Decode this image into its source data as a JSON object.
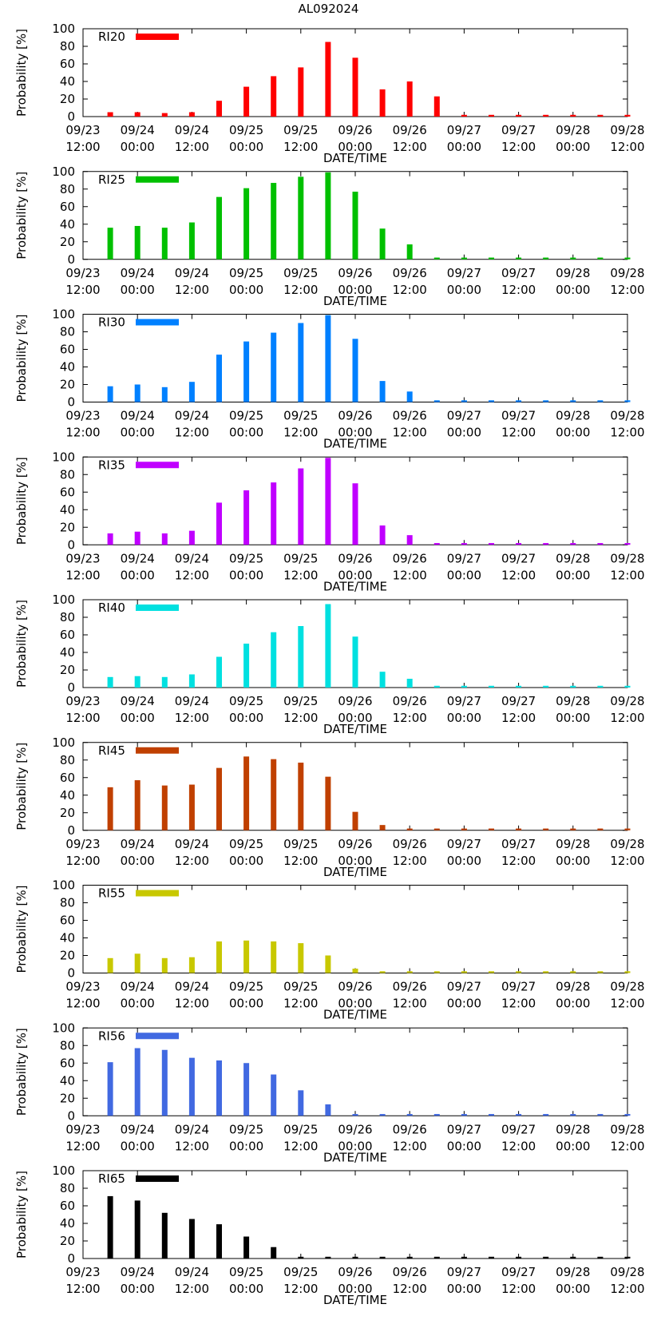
{
  "figure_title": "AL092024",
  "chart_data": [
    {
      "type": "bar",
      "series_name": "RI20",
      "color": "#ff0000",
      "ylabel": "Probability [%]",
      "xlabel": "DATE/TIME",
      "ylim": [
        0,
        100
      ],
      "yticks": [
        0,
        20,
        40,
        60,
        80,
        100
      ],
      "xtick_labels": [
        [
          "09/23",
          "12:00"
        ],
        [
          "09/24",
          "00:00"
        ],
        [
          "09/24",
          "12:00"
        ],
        [
          "09/25",
          "00:00"
        ],
        [
          "09/25",
          "12:00"
        ],
        [
          "09/26",
          "00:00"
        ],
        [
          "09/26",
          "12:00"
        ],
        [
          "09/27",
          "00:00"
        ],
        [
          "09/27",
          "12:00"
        ],
        [
          "09/28",
          "00:00"
        ],
        [
          "09/28",
          "12:00"
        ]
      ],
      "x_hours": [
        6,
        12,
        18,
        24,
        30,
        36,
        42,
        48,
        54,
        60,
        66,
        72,
        78,
        84,
        90,
        96,
        102,
        108,
        114,
        120
      ],
      "values": [
        5,
        5,
        4,
        5,
        18,
        34,
        46,
        56,
        85,
        67,
        31,
        40,
        23,
        2,
        2,
        2,
        2,
        2,
        2,
        2
      ]
    },
    {
      "type": "bar",
      "series_name": "RI25",
      "color": "#00c000",
      "ylabel": "Probability [%]",
      "xlabel": "DATE/TIME",
      "ylim": [
        0,
        100
      ],
      "yticks": [
        0,
        20,
        40,
        60,
        80,
        100
      ],
      "xtick_labels": [
        [
          "09/23",
          "12:00"
        ],
        [
          "09/24",
          "00:00"
        ],
        [
          "09/24",
          "12:00"
        ],
        [
          "09/25",
          "00:00"
        ],
        [
          "09/25",
          "12:00"
        ],
        [
          "09/26",
          "00:00"
        ],
        [
          "09/26",
          "12:00"
        ],
        [
          "09/27",
          "00:00"
        ],
        [
          "09/27",
          "12:00"
        ],
        [
          "09/28",
          "00:00"
        ],
        [
          "09/28",
          "12:00"
        ]
      ],
      "x_hours": [
        6,
        12,
        18,
        24,
        30,
        36,
        42,
        48,
        54,
        60,
        66,
        72,
        78,
        84,
        90,
        96,
        102,
        108,
        114,
        120
      ],
      "values": [
        36,
        38,
        36,
        42,
        71,
        81,
        87,
        94,
        99,
        77,
        35,
        17,
        2,
        2,
        2,
        2,
        2,
        2,
        2,
        2
      ]
    },
    {
      "type": "bar",
      "series_name": "RI30",
      "color": "#0080ff",
      "ylabel": "Probability [%]",
      "xlabel": "DATE/TIME",
      "ylim": [
        0,
        100
      ],
      "yticks": [
        0,
        20,
        40,
        60,
        80,
        100
      ],
      "xtick_labels": [
        [
          "09/23",
          "12:00"
        ],
        [
          "09/24",
          "00:00"
        ],
        [
          "09/24",
          "12:00"
        ],
        [
          "09/25",
          "00:00"
        ],
        [
          "09/25",
          "12:00"
        ],
        [
          "09/26",
          "00:00"
        ],
        [
          "09/26",
          "12:00"
        ],
        [
          "09/27",
          "00:00"
        ],
        [
          "09/27",
          "12:00"
        ],
        [
          "09/28",
          "00:00"
        ],
        [
          "09/28",
          "12:00"
        ]
      ],
      "x_hours": [
        6,
        12,
        18,
        24,
        30,
        36,
        42,
        48,
        54,
        60,
        66,
        72,
        78,
        84,
        90,
        96,
        102,
        108,
        114,
        120
      ],
      "values": [
        18,
        20,
        17,
        23,
        54,
        69,
        79,
        90,
        99,
        72,
        24,
        12,
        2,
        2,
        2,
        2,
        2,
        2,
        2,
        2
      ]
    },
    {
      "type": "bar",
      "series_name": "RI35",
      "color": "#c000ff",
      "ylabel": "Probability [%]",
      "xlabel": "DATE/TIME",
      "ylim": [
        0,
        100
      ],
      "yticks": [
        0,
        20,
        40,
        60,
        80,
        100
      ],
      "xtick_labels": [
        [
          "09/23",
          "12:00"
        ],
        [
          "09/24",
          "00:00"
        ],
        [
          "09/24",
          "12:00"
        ],
        [
          "09/25",
          "00:00"
        ],
        [
          "09/25",
          "12:00"
        ],
        [
          "09/26",
          "00:00"
        ],
        [
          "09/26",
          "12:00"
        ],
        [
          "09/27",
          "00:00"
        ],
        [
          "09/27",
          "12:00"
        ],
        [
          "09/28",
          "00:00"
        ],
        [
          "09/28",
          "12:00"
        ]
      ],
      "x_hours": [
        6,
        12,
        18,
        24,
        30,
        36,
        42,
        48,
        54,
        60,
        66,
        72,
        78,
        84,
        90,
        96,
        102,
        108,
        114,
        120
      ],
      "values": [
        13,
        15,
        13,
        16,
        48,
        62,
        71,
        87,
        99,
        70,
        22,
        11,
        2,
        2,
        2,
        2,
        2,
        2,
        2,
        2
      ]
    },
    {
      "type": "bar",
      "series_name": "RI40",
      "color": "#00e0e0",
      "ylabel": "Probability [%]",
      "xlabel": "DATE/TIME",
      "ylim": [
        0,
        100
      ],
      "yticks": [
        0,
        20,
        40,
        60,
        80,
        100
      ],
      "xtick_labels": [
        [
          "09/23",
          "12:00"
        ],
        [
          "09/24",
          "00:00"
        ],
        [
          "09/24",
          "12:00"
        ],
        [
          "09/25",
          "00:00"
        ],
        [
          "09/25",
          "12:00"
        ],
        [
          "09/26",
          "00:00"
        ],
        [
          "09/26",
          "12:00"
        ],
        [
          "09/27",
          "00:00"
        ],
        [
          "09/27",
          "12:00"
        ],
        [
          "09/28",
          "00:00"
        ],
        [
          "09/28",
          "12:00"
        ]
      ],
      "x_hours": [
        6,
        12,
        18,
        24,
        30,
        36,
        42,
        48,
        54,
        60,
        66,
        72,
        78,
        84,
        90,
        96,
        102,
        108,
        114,
        120
      ],
      "values": [
        12,
        13,
        12,
        15,
        35,
        50,
        63,
        70,
        95,
        58,
        18,
        10,
        2,
        2,
        2,
        2,
        2,
        2,
        2,
        2
      ]
    },
    {
      "type": "bar",
      "series_name": "RI45",
      "color": "#c04000",
      "ylabel": "Probability [%]",
      "xlabel": "DATE/TIME",
      "ylim": [
        0,
        100
      ],
      "yticks": [
        0,
        20,
        40,
        60,
        80,
        100
      ],
      "xtick_labels": [
        [
          "09/23",
          "12:00"
        ],
        [
          "09/24",
          "00:00"
        ],
        [
          "09/24",
          "12:00"
        ],
        [
          "09/25",
          "00:00"
        ],
        [
          "09/25",
          "12:00"
        ],
        [
          "09/26",
          "00:00"
        ],
        [
          "09/26",
          "12:00"
        ],
        [
          "09/27",
          "00:00"
        ],
        [
          "09/27",
          "12:00"
        ],
        [
          "09/28",
          "00:00"
        ],
        [
          "09/28",
          "12:00"
        ]
      ],
      "x_hours": [
        6,
        12,
        18,
        24,
        30,
        36,
        42,
        48,
        54,
        60,
        66,
        72,
        78,
        84,
        90,
        96,
        102,
        108,
        114,
        120
      ],
      "values": [
        49,
        57,
        51,
        52,
        71,
        84,
        81,
        77,
        61,
        21,
        6,
        2,
        2,
        2,
        2,
        2,
        2,
        2,
        2,
        2
      ]
    },
    {
      "type": "bar",
      "series_name": "RI55",
      "color": "#c8c800",
      "ylabel": "Probability [%]",
      "xlabel": "DATE/TIME",
      "ylim": [
        0,
        100
      ],
      "yticks": [
        0,
        20,
        40,
        60,
        80,
        100
      ],
      "xtick_labels": [
        [
          "09/23",
          "12:00"
        ],
        [
          "09/24",
          "00:00"
        ],
        [
          "09/24",
          "12:00"
        ],
        [
          "09/25",
          "00:00"
        ],
        [
          "09/25",
          "12:00"
        ],
        [
          "09/26",
          "00:00"
        ],
        [
          "09/26",
          "12:00"
        ],
        [
          "09/27",
          "00:00"
        ],
        [
          "09/27",
          "12:00"
        ],
        [
          "09/28",
          "00:00"
        ],
        [
          "09/28",
          "12:00"
        ]
      ],
      "x_hours": [
        6,
        12,
        18,
        24,
        30,
        36,
        42,
        48,
        54,
        60,
        66,
        72,
        78,
        84,
        90,
        96,
        102,
        108,
        114,
        120
      ],
      "values": [
        17,
        22,
        17,
        18,
        36,
        37,
        36,
        34,
        20,
        5,
        2,
        2,
        2,
        2,
        2,
        2,
        2,
        2,
        2,
        2
      ]
    },
    {
      "type": "bar",
      "series_name": "RI56",
      "color": "#4169e1",
      "ylabel": "Probability [%]",
      "xlabel": "DATE/TIME",
      "ylim": [
        0,
        100
      ],
      "yticks": [
        0,
        20,
        40,
        60,
        80,
        100
      ],
      "xtick_labels": [
        [
          "09/23",
          "12:00"
        ],
        [
          "09/24",
          "00:00"
        ],
        [
          "09/24",
          "12:00"
        ],
        [
          "09/25",
          "00:00"
        ],
        [
          "09/25",
          "12:00"
        ],
        [
          "09/26",
          "00:00"
        ],
        [
          "09/26",
          "12:00"
        ],
        [
          "09/27",
          "00:00"
        ],
        [
          "09/27",
          "12:00"
        ],
        [
          "09/28",
          "00:00"
        ],
        [
          "09/28",
          "12:00"
        ]
      ],
      "x_hours": [
        6,
        12,
        18,
        24,
        30,
        36,
        42,
        48,
        54,
        60,
        66,
        72,
        78,
        84,
        90,
        96,
        102,
        108,
        114,
        120
      ],
      "values": [
        61,
        77,
        75,
        66,
        63,
        60,
        47,
        29,
        13,
        2,
        2,
        2,
        2,
        2,
        2,
        2,
        2,
        2,
        2,
        2
      ]
    },
    {
      "type": "bar",
      "series_name": "RI65",
      "color": "#000000",
      "ylabel": "Probability [%]",
      "xlabel": "DATE/TIME",
      "ylim": [
        0,
        100
      ],
      "yticks": [
        0,
        20,
        40,
        60,
        80,
        100
      ],
      "xtick_labels": [
        [
          "09/23",
          "12:00"
        ],
        [
          "09/24",
          "00:00"
        ],
        [
          "09/24",
          "12:00"
        ],
        [
          "09/25",
          "00:00"
        ],
        [
          "09/25",
          "12:00"
        ],
        [
          "09/26",
          "00:00"
        ],
        [
          "09/26",
          "12:00"
        ],
        [
          "09/27",
          "00:00"
        ],
        [
          "09/27",
          "12:00"
        ],
        [
          "09/28",
          "00:00"
        ],
        [
          "09/28",
          "12:00"
        ]
      ],
      "x_hours": [
        6,
        12,
        18,
        24,
        30,
        36,
        42,
        48,
        54,
        60,
        66,
        72,
        78,
        84,
        90,
        96,
        102,
        108,
        114,
        120
      ],
      "values": [
        71,
        66,
        52,
        45,
        39,
        25,
        13,
        2,
        2,
        2,
        2,
        2,
        2,
        2,
        2,
        2,
        2,
        2,
        2,
        2
      ]
    }
  ]
}
